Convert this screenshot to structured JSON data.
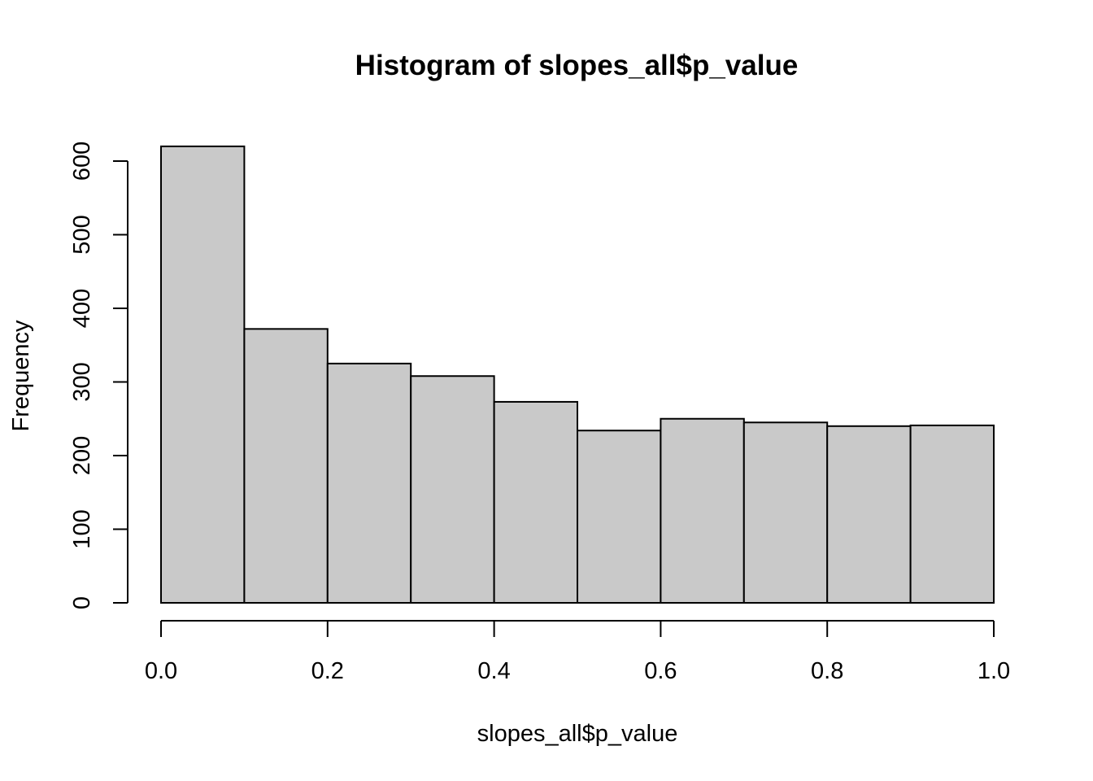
{
  "chart_data": {
    "type": "bar",
    "title": "Histogram of slopes_all$p_value",
    "xlabel": "slopes_all$p_value",
    "ylabel": "Frequency",
    "bins": [
      {
        "from": 0.0,
        "to": 0.1,
        "count": 620
      },
      {
        "from": 0.1,
        "to": 0.2,
        "count": 372
      },
      {
        "from": 0.2,
        "to": 0.3,
        "count": 325
      },
      {
        "from": 0.3,
        "to": 0.4,
        "count": 308
      },
      {
        "from": 0.4,
        "to": 0.5,
        "count": 273
      },
      {
        "from": 0.5,
        "to": 0.6,
        "count": 234
      },
      {
        "from": 0.6,
        "to": 0.7,
        "count": 250
      },
      {
        "from": 0.7,
        "to": 0.8,
        "count": 245
      },
      {
        "from": 0.8,
        "to": 0.9,
        "count": 240
      },
      {
        "from": 0.9,
        "to": 1.0,
        "count": 241
      }
    ],
    "xlim": [
      0.0,
      1.0
    ],
    "ylim": [
      0,
      600
    ],
    "x_ticks": [
      "0.0",
      "0.2",
      "0.4",
      "0.6",
      "0.8",
      "1.0"
    ],
    "y_ticks": [
      "0",
      "100",
      "200",
      "300",
      "400",
      "500",
      "600"
    ],
    "bar_fill": "#c9c9c9",
    "bar_stroke": "#000000",
    "grid": false,
    "legend": "none"
  }
}
